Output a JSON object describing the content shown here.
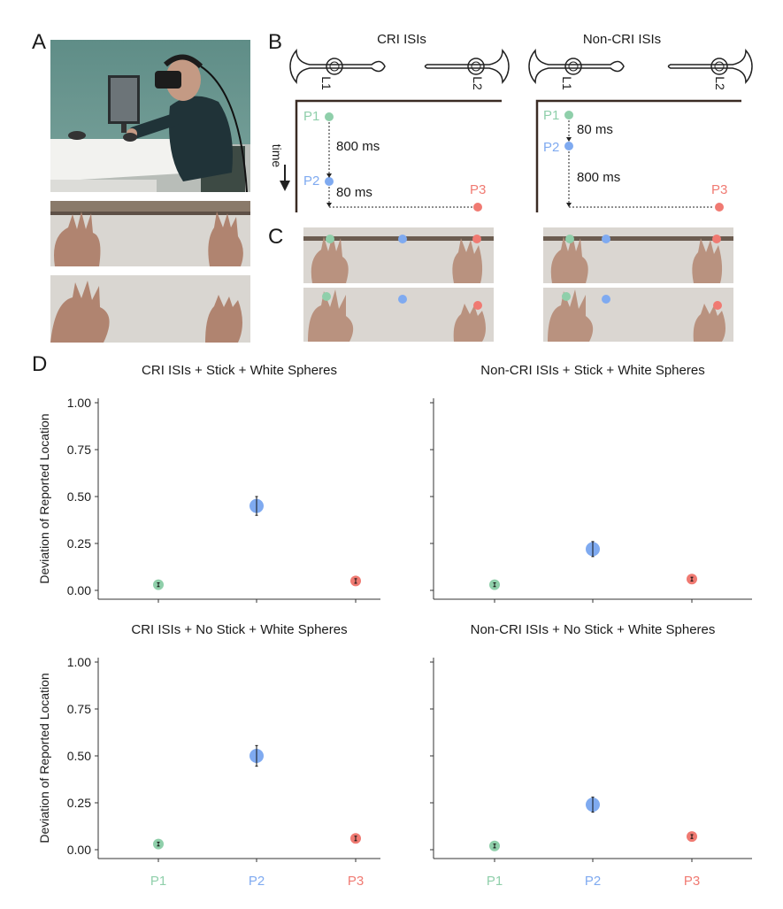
{
  "panels": {
    "a": "A",
    "b": "B",
    "c": "C",
    "d": "D"
  },
  "colors": {
    "p1": "#8fcfaa",
    "p2": "#7faaf0",
    "p3": "#f07a72",
    "axis": "#333333",
    "text": "#1a1a1a"
  },
  "panel_b": {
    "cri": {
      "title": "CRI ISIs",
      "l1": "L1",
      "l2": "L2",
      "p1": "P1",
      "p2": "P2",
      "p3": "P3",
      "interval1": "800 ms",
      "interval2": "80 ms"
    },
    "noncri": {
      "title": "Non-CRI ISIs",
      "l1": "L1",
      "l2": "L2",
      "p1": "P1",
      "p2": "P2",
      "p3": "P3",
      "interval1": "80 ms",
      "interval2": "800 ms"
    },
    "time_label": "time"
  },
  "panel_a": {
    "icons": [
      "vr-participant-photo",
      "virtual-hands-render-1",
      "virtual-hands-render-2"
    ]
  },
  "panel_c": {
    "icons": [
      "stimulus-frame-cri-stick",
      "stimulus-frame-cri-nostick",
      "stimulus-frame-noncri-stick",
      "stimulus-frame-noncri-nostick"
    ]
  },
  "chart_data": [
    {
      "type": "scatter",
      "title": "CRI ISIs + Stick + White Spheres",
      "ylabel": "Deviation of Reported Location",
      "categories": [
        "P1",
        "P2",
        "P3"
      ],
      "values": [
        0.03,
        0.45,
        0.05
      ],
      "errors": [
        0.01,
        0.05,
        0.012
      ],
      "ylim": [
        0,
        1.0
      ],
      "yticks": [
        "0.00",
        "0.25",
        "0.50",
        "0.75",
        "1.00"
      ]
    },
    {
      "type": "scatter",
      "title": "Non-CRI ISIs + Stick + White Spheres",
      "categories": [
        "P1",
        "P2",
        "P3"
      ],
      "values": [
        0.03,
        0.22,
        0.06
      ],
      "errors": [
        0.01,
        0.04,
        0.01
      ],
      "ylim": [
        0,
        1.0
      ]
    },
    {
      "type": "scatter",
      "title": "CRI ISIs + No Stick + White Spheres",
      "ylabel": "Deviation of Reported Location",
      "categories": [
        "P1",
        "P2",
        "P3"
      ],
      "values": [
        0.03,
        0.5,
        0.06
      ],
      "errors": [
        0.01,
        0.055,
        0.012
      ],
      "ylim": [
        0,
        1.0
      ],
      "yticks": [
        "0.00",
        "0.25",
        "0.50",
        "0.75",
        "1.00"
      ],
      "xticklabels": [
        "P1",
        "P2",
        "P3"
      ]
    },
    {
      "type": "scatter",
      "title": "Non-CRI ISIs + No Stick + White Spheres",
      "categories": [
        "P1",
        "P2",
        "P3"
      ],
      "values": [
        0.02,
        0.24,
        0.07
      ],
      "errors": [
        0.01,
        0.04,
        0.01
      ],
      "ylim": [
        0,
        1.0
      ],
      "xticklabels": [
        "P1",
        "P2",
        "P3"
      ]
    }
  ]
}
